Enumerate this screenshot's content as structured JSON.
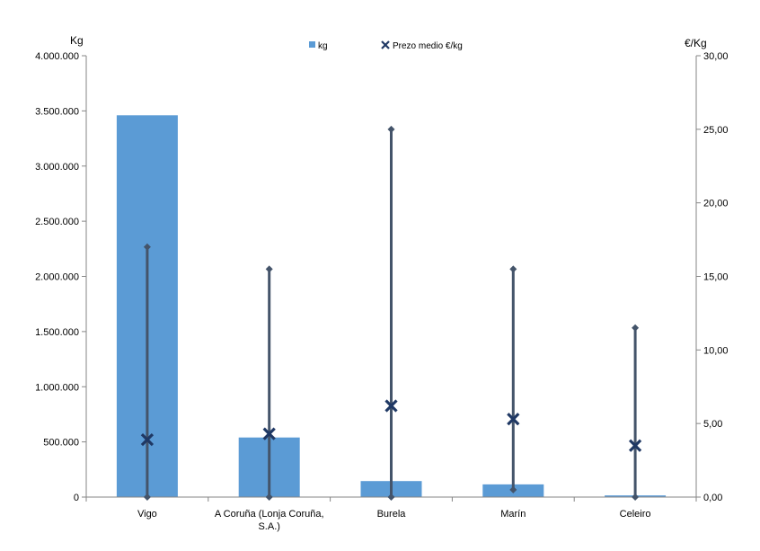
{
  "chart_data": {
    "type": "bar",
    "categories": [
      "Vigo",
      "A Coruña (Lonja Coruña, S.A.)",
      "Burela",
      "Marín",
      "Celeiro"
    ],
    "category_lines": [
      [
        "Vigo"
      ],
      [
        "A Coruña (Lonja Coruña,",
        "S.A.)"
      ],
      [
        "Burela"
      ],
      [
        "Marín"
      ],
      [
        "Celeiro"
      ]
    ],
    "left_axis": {
      "unit_label": "Kg",
      "ylim": [
        0,
        4000000
      ],
      "ticks": [
        0,
        500000,
        1000000,
        1500000,
        2000000,
        2500000,
        3000000,
        3500000,
        4000000
      ],
      "tick_labels": [
        "0",
        "500.000",
        "1.000.000",
        "1.500.000",
        "2.000.000",
        "2.500.000",
        "3.000.000",
        "3.500.000",
        "4.000.000"
      ]
    },
    "right_axis": {
      "unit_label": "€/Kg",
      "ylim": [
        0,
        30
      ],
      "ticks": [
        0,
        5,
        10,
        15,
        20,
        25,
        30
      ],
      "tick_labels": [
        "0,00",
        "5,00",
        "10,00",
        "15,00",
        "20,00",
        "25,00",
        "30,00"
      ]
    },
    "series": [
      {
        "name": "kg",
        "type": "bar",
        "axis": "left",
        "color": "#5b9bd5",
        "values": [
          3460000,
          540000,
          145000,
          115000,
          15000
        ]
      },
      {
        "name": "Prezo medio €/kg",
        "type": "marker",
        "axis": "right",
        "color": "#1f3864",
        "values": [
          3.9,
          4.3,
          6.2,
          5.3,
          3.5
        ]
      },
      {
        "type": "high-low",
        "axis": "right",
        "color": "#44546a",
        "high": [
          17.0,
          15.5,
          25.0,
          15.5,
          11.5
        ],
        "low": [
          0.0,
          0.0,
          0.0,
          0.5,
          0.0
        ]
      }
    ],
    "legend": {
      "position": "top-center",
      "entries": [
        "kg",
        "Prezo medio €/kg"
      ]
    },
    "grid": false
  }
}
